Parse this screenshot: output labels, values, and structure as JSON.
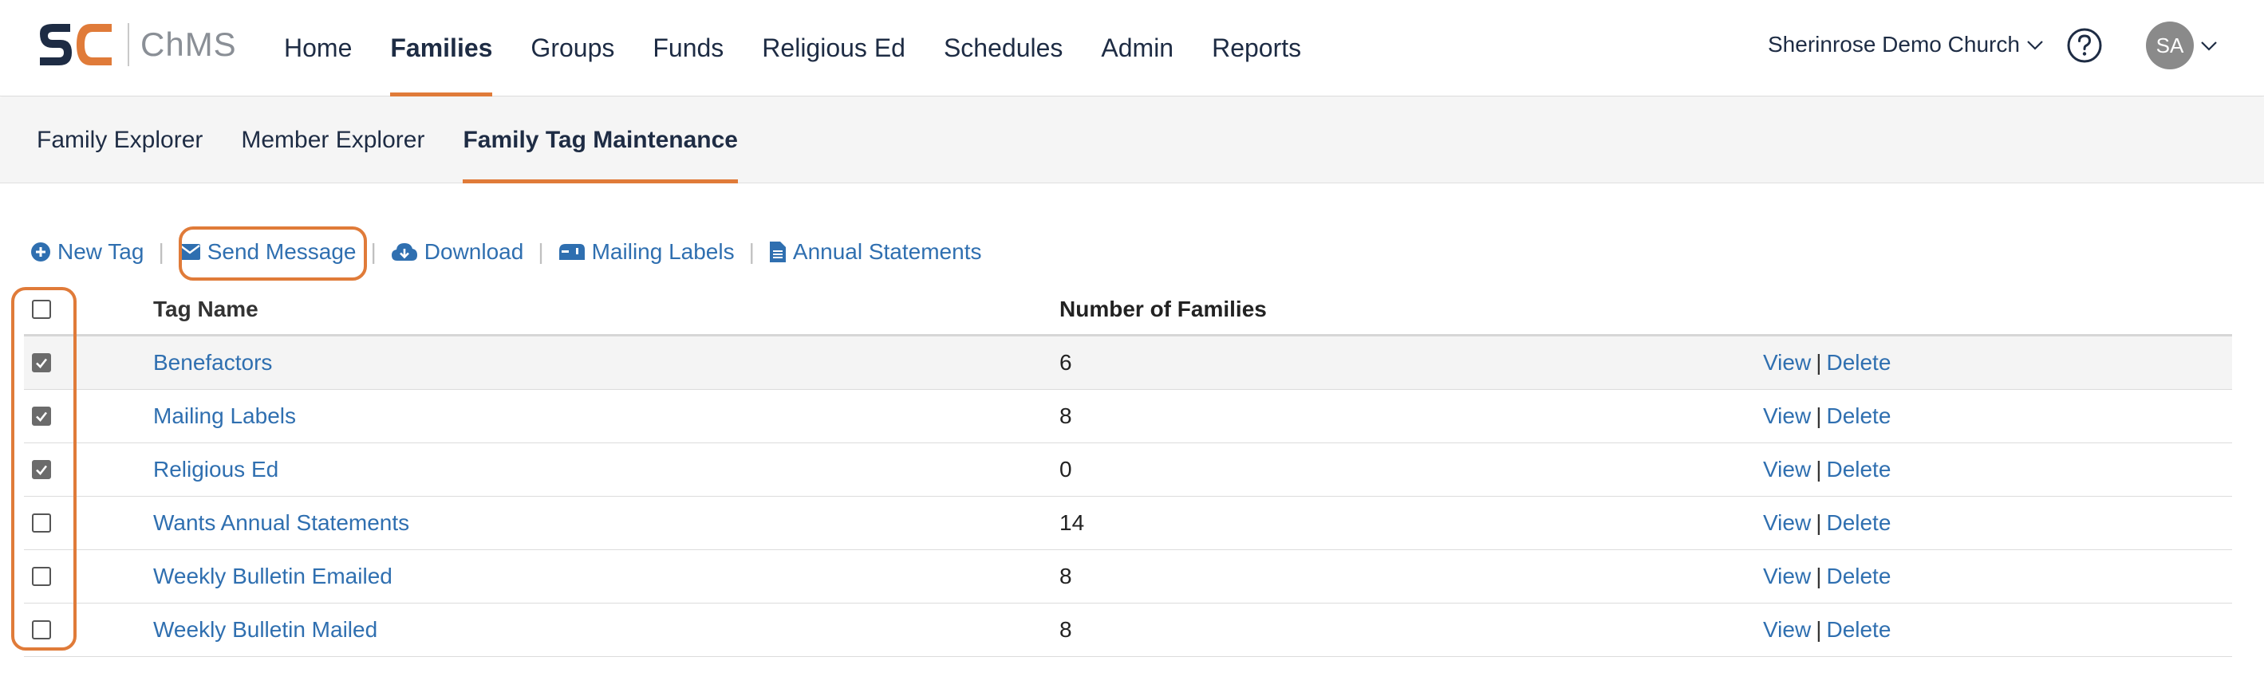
{
  "app": {
    "logo_text": "ChMS"
  },
  "topnav": {
    "items": [
      {
        "label": "Home"
      },
      {
        "label": "Families"
      },
      {
        "label": "Groups"
      },
      {
        "label": "Funds"
      },
      {
        "label": "Religious Ed"
      },
      {
        "label": "Schedules"
      },
      {
        "label": "Admin"
      },
      {
        "label": "Reports"
      }
    ],
    "active": "Families",
    "church": "Sherinrose Demo Church",
    "avatar_initials": "SA"
  },
  "subnav": {
    "items": [
      {
        "label": "Family Explorer"
      },
      {
        "label": "Member Explorer"
      },
      {
        "label": "Family Tag Maintenance"
      }
    ],
    "active": "Family Tag Maintenance"
  },
  "toolbar": {
    "new_tag": "New Tag",
    "send_message": "Send Message",
    "download": "Download",
    "mailing_labels": "Mailing Labels",
    "annual_statements": "Annual Statements",
    "separator": "|"
  },
  "table": {
    "headers": {
      "name": "Tag Name",
      "count": "Number of Families"
    },
    "view_label": "View",
    "delete_label": "Delete",
    "action_sep": "|",
    "rows": [
      {
        "name": "Benefactors",
        "count": "6",
        "checked": true
      },
      {
        "name": "Mailing Labels",
        "count": "8",
        "checked": true
      },
      {
        "name": "Religious Ed",
        "count": "0",
        "checked": true
      },
      {
        "name": "Wants Annual Statements",
        "count": "14",
        "checked": false
      },
      {
        "name": "Weekly Bulletin Emailed",
        "count": "8",
        "checked": false
      },
      {
        "name": "Weekly Bulletin Mailed",
        "count": "8",
        "checked": false
      }
    ]
  },
  "colors": {
    "accent": "#e07b39",
    "link": "#2f6fb0",
    "brand_navy": "#1e2c44"
  },
  "icons": {
    "help": "question-circle-icon",
    "chevron": "chevron-down-icon",
    "new_tag": "plus-circle-icon",
    "send_message": "envelope-icon",
    "download": "cloud-download-icon",
    "mailing_labels": "mailbox-icon",
    "annual_statements": "document-icon"
  }
}
